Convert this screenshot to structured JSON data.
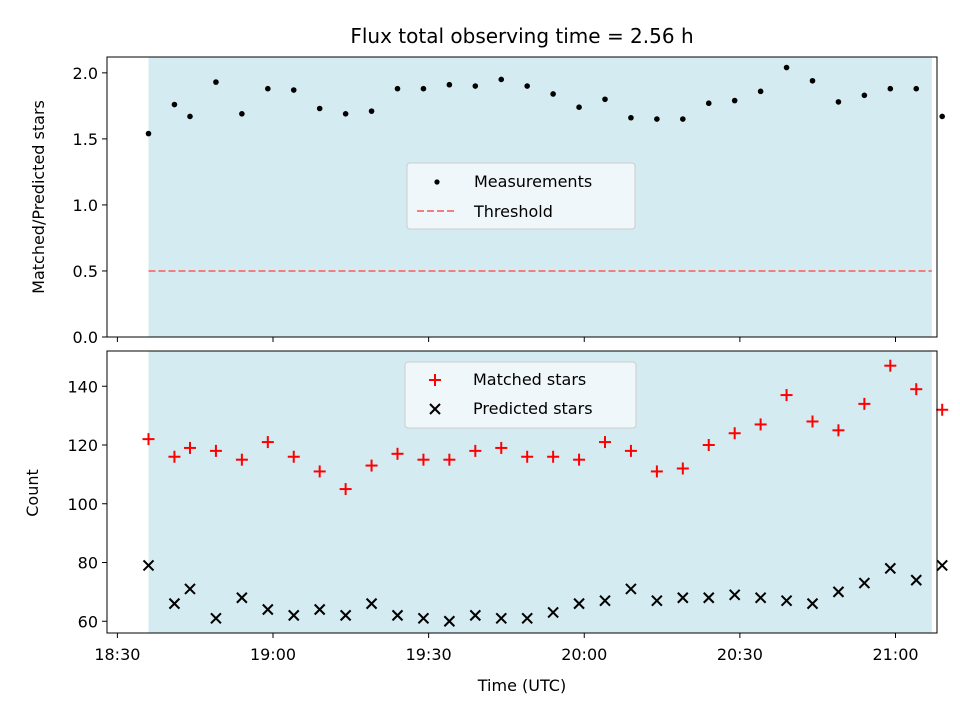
{
  "chart_data": [
    {
      "type": "scatter",
      "title": "Flux total observing time = 2.56 h",
      "xlabel": "",
      "ylabel": "Matched/Predicted stars",
      "xlim": [
        "18:28",
        "21:08"
      ],
      "ylim": [
        0.0,
        2.12
      ],
      "yticks": [
        "0.0",
        "0.5",
        "1.0",
        "1.5",
        "2.0"
      ],
      "shaded_span": [
        "18:36",
        "21:07"
      ],
      "shade_color": "#d4ebf1",
      "threshold": {
        "name": "Threshold",
        "value": 0.5,
        "x": [
          "18:36",
          "21:07"
        ],
        "color": "#f08080"
      },
      "series": [
        {
          "name": "Measurements",
          "color": "#000000",
          "x": [
            "18:36",
            "18:41",
            "18:44",
            "18:49",
            "18:54",
            "18:59",
            "19:04",
            "19:09",
            "19:14",
            "19:19",
            "19:24",
            "19:29",
            "19:34",
            "19:39",
            "19:44",
            "19:49",
            "19:54",
            "19:59",
            "20:04",
            "20:09",
            "20:14",
            "20:19",
            "20:24",
            "20:29",
            "20:34",
            "20:39",
            "20:44",
            "20:49",
            "20:54",
            "20:59",
            "21:04",
            "21:09"
          ],
          "y": [
            1.54,
            1.76,
            1.67,
            1.93,
            1.69,
            1.88,
            1.87,
            1.73,
            1.69,
            1.71,
            1.88,
            1.88,
            1.91,
            1.9,
            1.95,
            1.9,
            1.84,
            1.74,
            1.8,
            1.66,
            1.65,
            1.65,
            1.77,
            1.79,
            1.86,
            2.04,
            1.94,
            1.78,
            1.83,
            1.88,
            1.88,
            1.67
          ]
        }
      ],
      "legend": {
        "placement": "center"
      }
    },
    {
      "type": "scatter",
      "title": "",
      "xlabel": "Time (UTC)",
      "ylabel": "Count",
      "xlim": [
        "18:28",
        "21:08"
      ],
      "ylim": [
        56,
        152
      ],
      "yticks": [
        "60",
        "80",
        "100",
        "120",
        "140"
      ],
      "xticks": [
        "18:30",
        "19:00",
        "19:30",
        "20:00",
        "20:30",
        "21:00"
      ],
      "shaded_span": [
        "18:36",
        "21:07"
      ],
      "shade_color": "#d4ebf1",
      "series": [
        {
          "name": "Matched stars",
          "marker": "plus",
          "color": "#ff0000",
          "x": [
            "18:36",
            "18:41",
            "18:44",
            "18:49",
            "18:54",
            "18:59",
            "19:04",
            "19:09",
            "19:14",
            "19:19",
            "19:24",
            "19:29",
            "19:34",
            "19:39",
            "19:44",
            "19:49",
            "19:54",
            "19:59",
            "20:04",
            "20:09",
            "20:14",
            "20:19",
            "20:24",
            "20:29",
            "20:34",
            "20:39",
            "20:44",
            "20:49",
            "20:54",
            "20:59",
            "21:04",
            "21:09"
          ],
          "y": [
            122,
            116,
            119,
            118,
            115,
            121,
            116,
            111,
            105,
            113,
            117,
            115,
            115,
            118,
            119,
            116,
            116,
            115,
            121,
            118,
            111,
            112,
            120,
            124,
            127,
            137,
            128,
            125,
            134,
            147,
            139,
            132
          ]
        },
        {
          "name": "Predicted stars",
          "marker": "x",
          "color": "#000000",
          "x": [
            "18:36",
            "18:41",
            "18:44",
            "18:49",
            "18:54",
            "18:59",
            "19:04",
            "19:09",
            "19:14",
            "19:19",
            "19:24",
            "19:29",
            "19:34",
            "19:39",
            "19:44",
            "19:49",
            "19:54",
            "19:59",
            "20:04",
            "20:09",
            "20:14",
            "20:19",
            "20:24",
            "20:29",
            "20:34",
            "20:39",
            "20:44",
            "20:49",
            "20:54",
            "20:59",
            "21:04",
            "21:09"
          ],
          "y": [
            79,
            66,
            71,
            61,
            68,
            64,
            62,
            64,
            62,
            66,
            62,
            61,
            60,
            62,
            61,
            61,
            63,
            66,
            67,
            71,
            67,
            68,
            68,
            69,
            68,
            67,
            66,
            70,
            73,
            78,
            74,
            79
          ]
        }
      ],
      "legend": {
        "placement": "top-center"
      }
    }
  ]
}
